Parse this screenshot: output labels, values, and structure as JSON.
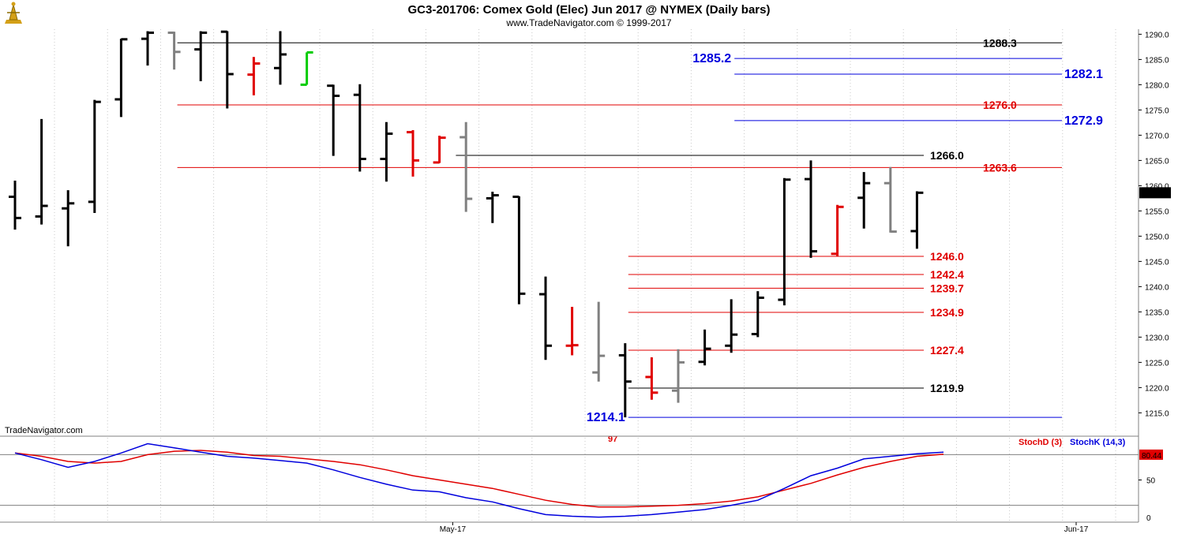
{
  "header": {
    "title": "GC3-201706:  Comex Gold (Elec) Jun 2017 @ NYMEX  (Daily bars)",
    "subtitle": "www.TradeNavigator.com © 1999-2017"
  },
  "watermark": "TradeNavigator.com",
  "stray_label": "97",
  "colors": {
    "black": "#000000",
    "red": "#e00000",
    "gray": "#808080",
    "green": "#00cc00",
    "blue": "#0000dd",
    "stochD": "#e00000",
    "stochK": "#0000dd"
  },
  "chart_data": [
    {
      "type": "ohlc",
      "title": "GC3-201706:  Comex Gold (Elec) Jun 2017 @ NYMEX  (Daily bars)",
      "ylim": [
        1211,
        1291
      ],
      "y_ticks": [
        1215.0,
        1220.0,
        1225.0,
        1230.0,
        1235.0,
        1240.0,
        1245.0,
        1250.0,
        1255.0,
        1260.0,
        1265.0,
        1270.0,
        1275.0,
        1280.0,
        1285.0,
        1290.0
      ],
      "last_price": "1258.6",
      "x_labels": [
        {
          "label": "May-17",
          "bar": 16.5
        },
        {
          "label": "Jun-17",
          "bar": 40
        }
      ],
      "bars": [
        {
          "i": 0,
          "h": 1261.0,
          "l": 1251.3,
          "o": 1257.8,
          "c": 1253.6,
          "color": "black"
        },
        {
          "i": 1,
          "h": 1273.2,
          "l": 1252.3,
          "o": 1253.9,
          "c": 1256.0,
          "color": "black"
        },
        {
          "i": 2,
          "h": 1259.1,
          "l": 1248.0,
          "o": 1255.5,
          "c": 1256.5,
          "color": "black"
        },
        {
          "i": 3,
          "h": 1277.0,
          "l": 1254.6,
          "o": 1256.8,
          "c": 1276.6,
          "color": "black"
        },
        {
          "i": 4,
          "h": 1289.1,
          "l": 1273.6,
          "o": 1277.1,
          "c": 1289.0,
          "color": "black"
        },
        {
          "i": 5,
          "h": 1290.6,
          "l": 1283.8,
          "o": 1289.1,
          "c": 1290.3,
          "color": "black"
        },
        {
          "i": 6,
          "h": 1290.5,
          "l": 1283.0,
          "o": 1290.3,
          "c": 1286.5,
          "color": "gray"
        },
        {
          "i": 7,
          "h": 1290.6,
          "l": 1280.7,
          "o": 1287.0,
          "c": 1290.3,
          "color": "black"
        },
        {
          "i": 8,
          "h": 1290.6,
          "l": 1275.3,
          "o": 1290.5,
          "c": 1282.1,
          "color": "black"
        },
        {
          "i": 9,
          "h": 1285.5,
          "l": 1277.9,
          "o": 1282.0,
          "c": 1284.2,
          "color": "red"
        },
        {
          "i": 10,
          "h": 1290.6,
          "l": 1280.0,
          "o": 1283.3,
          "c": 1286.0,
          "color": "black"
        },
        {
          "i": 11,
          "h": 1286.4,
          "l": 1280.0,
          "o": 1280.0,
          "c": 1286.4,
          "color": "green"
        },
        {
          "i": 12,
          "h": 1280.0,
          "l": 1265.9,
          "o": 1279.8,
          "c": 1277.8,
          "color": "black"
        },
        {
          "i": 13,
          "h": 1280.1,
          "l": 1262.8,
          "o": 1278.0,
          "c": 1265.3,
          "color": "black"
        },
        {
          "i": 14,
          "h": 1272.6,
          "l": 1260.8,
          "o": 1265.3,
          "c": 1270.3,
          "color": "black"
        },
        {
          "i": 15,
          "h": 1271.0,
          "l": 1261.8,
          "o": 1270.6,
          "c": 1265.0,
          "color": "red"
        },
        {
          "i": 16,
          "h": 1269.9,
          "l": 1264.5,
          "o": 1264.6,
          "c": 1269.5,
          "color": "red"
        },
        {
          "i": 17,
          "h": 1272.6,
          "l": 1254.8,
          "o": 1269.6,
          "c": 1257.4,
          "color": "gray"
        },
        {
          "i": 18,
          "h": 1258.8,
          "l": 1252.6,
          "o": 1257.5,
          "c": 1258.1,
          "color": "black"
        },
        {
          "i": 19,
          "h": 1257.9,
          "l": 1236.5,
          "o": 1257.8,
          "c": 1238.6,
          "color": "black"
        },
        {
          "i": 20,
          "h": 1242.0,
          "l": 1225.5,
          "o": 1238.5,
          "c": 1228.3,
          "color": "black"
        },
        {
          "i": 21,
          "h": 1236.0,
          "l": 1226.4,
          "o": 1228.3,
          "c": 1228.4,
          "color": "red"
        },
        {
          "i": 22,
          "h": 1237.0,
          "l": 1221.2,
          "o": 1223.0,
          "c": 1226.3,
          "color": "gray"
        },
        {
          "i": 23,
          "h": 1228.8,
          "l": 1214.1,
          "o": 1226.4,
          "c": 1221.2,
          "color": "black"
        },
        {
          "i": 24,
          "h": 1226.0,
          "l": 1217.6,
          "o": 1222.1,
          "c": 1219.0,
          "color": "red"
        },
        {
          "i": 25,
          "h": 1227.6,
          "l": 1217.0,
          "o": 1219.4,
          "c": 1225.0,
          "color": "gray"
        },
        {
          "i": 26,
          "h": 1231.5,
          "l": 1224.4,
          "o": 1225.1,
          "c": 1227.7,
          "color": "black"
        },
        {
          "i": 27,
          "h": 1237.5,
          "l": 1226.9,
          "o": 1228.3,
          "c": 1230.5,
          "color": "black"
        },
        {
          "i": 28,
          "h": 1239.1,
          "l": 1230.0,
          "o": 1230.6,
          "c": 1237.8,
          "color": "black"
        },
        {
          "i": 29,
          "h": 1261.5,
          "l": 1236.3,
          "o": 1237.4,
          "c": 1261.2,
          "color": "black"
        },
        {
          "i": 30,
          "h": 1265.0,
          "l": 1245.7,
          "o": 1261.3,
          "c": 1247.0,
          "color": "black"
        },
        {
          "i": 31,
          "h": 1256.2,
          "l": 1246.0,
          "o": 1246.5,
          "c": 1255.8,
          "color": "red"
        },
        {
          "i": 32,
          "h": 1262.7,
          "l": 1251.5,
          "o": 1257.6,
          "c": 1260.5,
          "color": "black"
        },
        {
          "i": 33,
          "h": 1263.7,
          "l": 1250.7,
          "o": 1260.5,
          "c": 1250.9,
          "color": "gray"
        },
        {
          "i": 34,
          "h": 1258.9,
          "l": 1247.5,
          "o": 1251.0,
          "c": 1258.6,
          "color": "black"
        }
      ],
      "levels": [
        {
          "label": "1288.3",
          "value": 1288.3,
          "color": "black",
          "from_bar": 6,
          "line_end": "far",
          "label_pos": "far"
        },
        {
          "label": "1285.2",
          "value": 1285.2,
          "color": "blue",
          "from_bar": 27,
          "line_end": "far",
          "label_pos": "left",
          "big": true
        },
        {
          "label": "1282.1",
          "value": 1282.1,
          "color": "blue",
          "from_bar": 27,
          "line_end": "far",
          "label_pos": "end",
          "big": true
        },
        {
          "label": "1276.0",
          "value": 1276.0,
          "color": "red",
          "from_bar": 6,
          "line_end": "far",
          "label_pos": "far"
        },
        {
          "label": "1272.9",
          "value": 1272.9,
          "color": "blue",
          "from_bar": 27,
          "line_end": "far",
          "label_pos": "end",
          "big": true
        },
        {
          "label": "1266.0",
          "value": 1266.0,
          "color": "black",
          "from_bar": 16.5,
          "line_end": "near",
          "label_pos": "near"
        },
        {
          "label": "1263.6",
          "value": 1263.6,
          "color": "red",
          "from_bar": 6,
          "line_end": "far",
          "label_pos": "far"
        },
        {
          "label": "1246.0",
          "value": 1246.0,
          "color": "red",
          "from_bar": 23,
          "line_end": "near",
          "label_pos": "near"
        },
        {
          "label": "1242.4",
          "value": 1242.4,
          "color": "red",
          "from_bar": 23,
          "line_end": "near",
          "label_pos": "near"
        },
        {
          "label": "1239.7",
          "value": 1239.7,
          "color": "red",
          "from_bar": 23,
          "line_end": "near",
          "label_pos": "near"
        },
        {
          "label": "1234.9",
          "value": 1234.9,
          "color": "red",
          "from_bar": 23,
          "line_end": "near",
          "label_pos": "near"
        },
        {
          "label": "1227.4",
          "value": 1227.4,
          "color": "red",
          "from_bar": 23,
          "line_end": "near",
          "label_pos": "near"
        },
        {
          "label": "1219.9",
          "value": 1219.9,
          "color": "black",
          "from_bar": 23,
          "line_end": "near",
          "label_pos": "near"
        },
        {
          "label": "1214.1",
          "value": 1214.1,
          "color": "blue",
          "from_bar": 23,
          "line_end": "far",
          "label_pos": "left",
          "big": true
        }
      ]
    },
    {
      "type": "line",
      "ylim": [
        0,
        100
      ],
      "y_ticks": [
        50
      ],
      "reference_lines": [
        80,
        20
      ],
      "last_value_label": "80.44",
      "series": [
        {
          "name": "StochD (3)",
          "color": "red",
          "values": [
            82,
            78,
            72,
            70,
            72,
            80,
            84,
            85,
            83,
            79,
            78,
            75,
            72,
            68,
            62,
            55,
            50,
            45,
            40,
            33,
            26,
            21,
            18,
            18,
            19,
            20,
            22,
            25,
            30,
            38,
            46,
            56,
            65,
            72,
            78,
            80.44
          ]
        },
        {
          "name": "StochK (14,3)",
          "color": "blue",
          "values": [
            82,
            74,
            65,
            72,
            82,
            93,
            88,
            83,
            78,
            76,
            73,
            70,
            62,
            53,
            45,
            38,
            36,
            29,
            24,
            16,
            9,
            7,
            6,
            7,
            9,
            12,
            15,
            20,
            26,
            40,
            55,
            64,
            75,
            78,
            81,
            83
          ]
        }
      ]
    }
  ]
}
